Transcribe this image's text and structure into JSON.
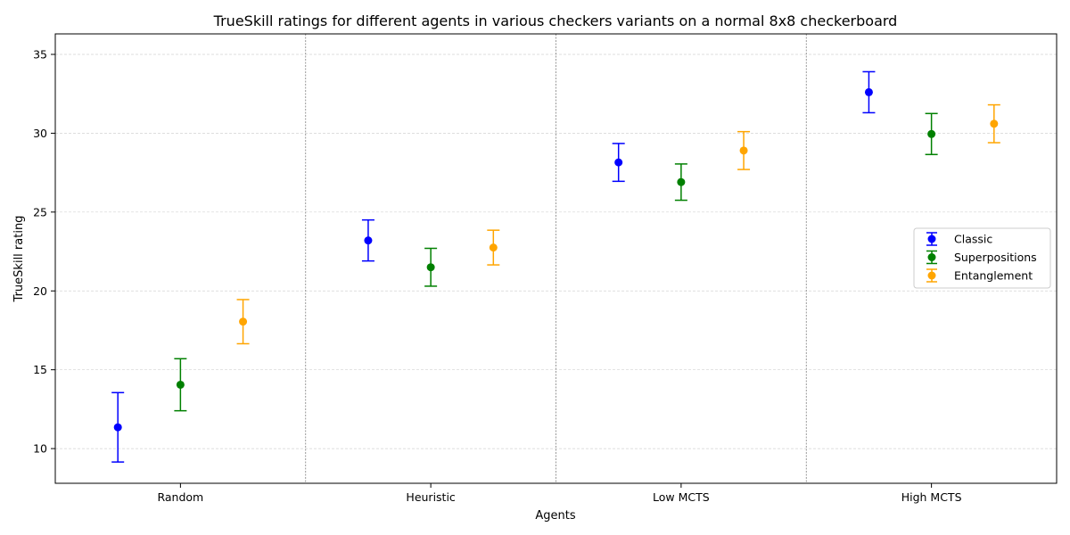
{
  "chart_data": {
    "type": "scatter",
    "title": "TrueSkill ratings for different agents in various checkers variants on a normal 8x8 checkerboard",
    "xlabel": "Agents",
    "ylabel": "TrueSkill rating",
    "categories": [
      "Random",
      "Heuristic",
      "Low MCTS",
      "High MCTS"
    ],
    "ylim": [
      7.8,
      36.3
    ],
    "yticks": [
      10,
      15,
      20,
      25,
      30,
      35
    ],
    "grid": true,
    "legend_position": "center-right",
    "series": [
      {
        "name": "Classic",
        "color": "#0000ff",
        "values": [
          11.35,
          23.2,
          28.15,
          32.6
        ],
        "errors": [
          2.2,
          1.3,
          1.2,
          1.3
        ]
      },
      {
        "name": "Superpositions",
        "color": "#008000",
        "values": [
          14.05,
          21.5,
          26.9,
          29.95
        ],
        "errors": [
          1.65,
          1.2,
          1.15,
          1.3
        ]
      },
      {
        "name": "Entanglement",
        "color": "#ffa500",
        "values": [
          18.05,
          22.75,
          28.9,
          30.6
        ],
        "errors": [
          1.4,
          1.1,
          1.2,
          1.2
        ]
      }
    ]
  }
}
